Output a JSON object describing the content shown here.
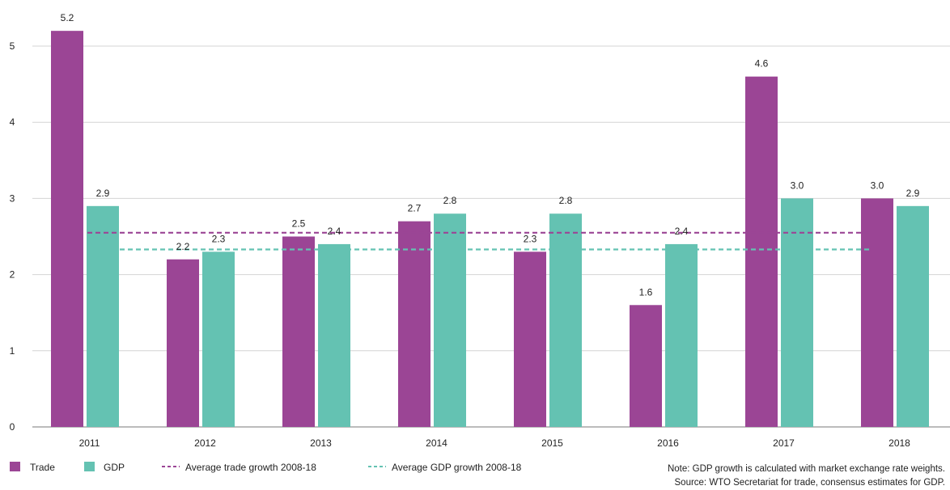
{
  "chart_data": {
    "type": "bar",
    "categories": [
      "2011",
      "2012",
      "2013",
      "2014",
      "2015",
      "2016",
      "2017",
      "2018"
    ],
    "series": [
      {
        "name": "Trade",
        "values": [
          5.2,
          2.2,
          2.5,
          2.7,
          2.3,
          1.6,
          4.6,
          3.0
        ],
        "labels": [
          "5.2",
          "2.2",
          "2.5",
          "2.7",
          "2.3",
          "1.6",
          "4.6",
          "3.0"
        ],
        "color": "#9b4595"
      },
      {
        "name": "GDP",
        "values": [
          2.9,
          2.3,
          2.4,
          2.8,
          2.8,
          2.4,
          3.0,
          2.9
        ],
        "labels": [
          "2.9",
          "2.3",
          "2.4",
          "2.8",
          "2.8",
          "2.4",
          "3.0",
          "2.9"
        ],
        "color": "#64c2b2"
      }
    ],
    "reference_lines": [
      {
        "name": "Average trade growth 2008-18",
        "value": 2.55,
        "color": "#9b4595",
        "style": "dashed"
      },
      {
        "name": "Average GDP growth 2008-18",
        "value": 2.33,
        "color": "#64c2b2",
        "style": "dashed"
      }
    ],
    "yticks": [
      "0",
      "1",
      "2",
      "3",
      "4",
      "5"
    ],
    "ylim": [
      0,
      5.6
    ],
    "grid": true,
    "legend_position": "bottom-left",
    "title": "",
    "xlabel": "",
    "ylabel": ""
  },
  "notes": [
    "Note: GDP growth is calculated with market exchange rate weights.",
    "Source: WTO Secretariat for trade, consensus estimates for GDP."
  ]
}
